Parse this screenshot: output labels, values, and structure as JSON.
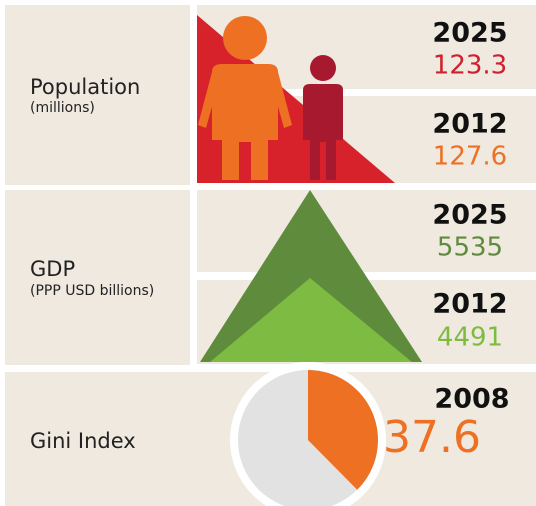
{
  "population": {
    "label": "Population",
    "unit": "(millions)",
    "entries": [
      {
        "year": "2025",
        "value": 123.3
      },
      {
        "year": "2012",
        "value": 127.6
      }
    ]
  },
  "gdp": {
    "label": "GDP",
    "unit": "(PPP USD billions)",
    "entries": [
      {
        "year": "2025",
        "value": 5535
      },
      {
        "year": "2012",
        "value": 4491
      }
    ]
  },
  "gini": {
    "label": "Gini Index",
    "entries": [
      {
        "year": "2008",
        "value": 37.6
      }
    ]
  }
}
